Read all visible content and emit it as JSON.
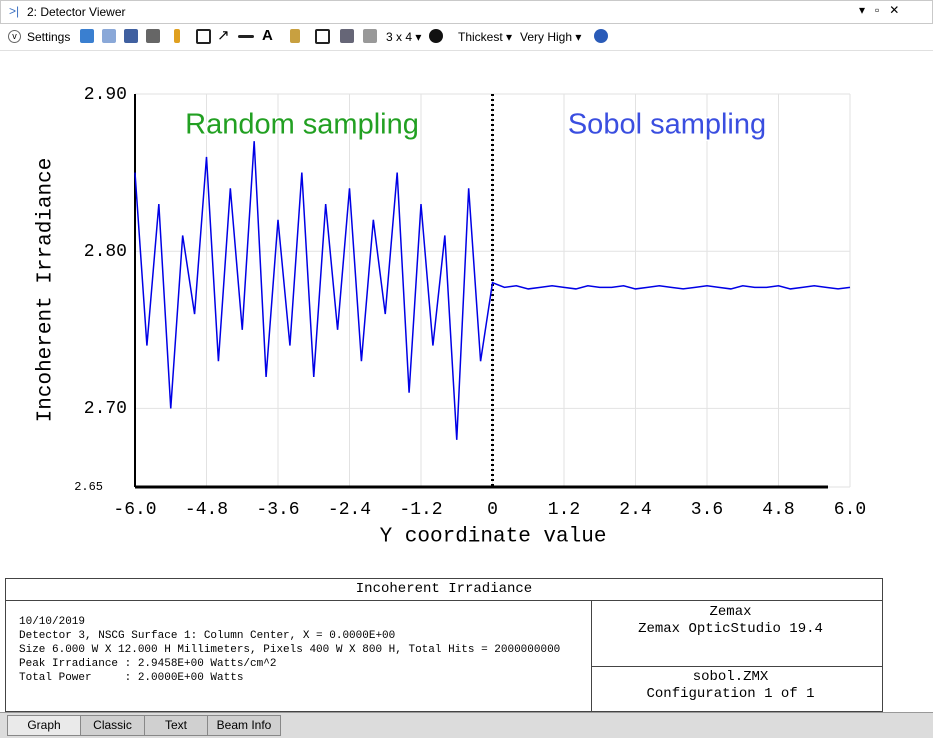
{
  "window": {
    "title": "2: Detector Viewer"
  },
  "toolbar": {
    "settings": "Settings",
    "layout": "3 x 4",
    "line_thickness": "Thickest",
    "resolution": "Very High"
  },
  "chart_data": {
    "type": "line",
    "ylabel": "Incoherent Irradiance",
    "xlabel": "Y coordinate value",
    "annotations": [
      {
        "text": "Random sampling",
        "color": "#22a022"
      },
      {
        "text": "Sobol sampling",
        "color": "#3a4ee0"
      }
    ],
    "x": [
      -6,
      -5.8,
      -5.6,
      -5.4,
      -5.2,
      -5,
      -4.8,
      -4.6,
      -4.4,
      -4.2,
      -4,
      -3.8,
      -3.6,
      -3.4,
      -3.2,
      -3,
      -2.8,
      -2.6,
      -2.4,
      -2.2,
      -2,
      -1.8,
      -1.6,
      -1.4,
      -1.2,
      -1,
      -0.8,
      -0.6,
      -0.4,
      -0.2,
      0,
      0.2,
      0.4,
      0.6,
      0.8,
      1,
      1.2,
      1.4,
      1.6,
      1.8,
      2,
      2.2,
      2.4,
      2.6,
      2.8,
      3,
      3.2,
      3.4,
      3.6,
      3.8,
      4,
      4.2,
      4.4,
      4.6,
      4.8,
      5,
      5.2,
      5.4,
      5.6,
      5.8,
      6
    ],
    "series": [
      {
        "name": "Incoherent Irradiance",
        "color": "#0000e6",
        "values": [
          2.85,
          2.74,
          2.83,
          2.7,
          2.81,
          2.76,
          2.86,
          2.73,
          2.84,
          2.75,
          2.87,
          2.72,
          2.82,
          2.74,
          2.85,
          2.72,
          2.83,
          2.75,
          2.84,
          2.73,
          2.82,
          2.76,
          2.85,
          2.71,
          2.83,
          2.74,
          2.81,
          2.68,
          2.84,
          2.73,
          2.78,
          2.777,
          2.778,
          2.776,
          2.777,
          2.778,
          2.777,
          2.776,
          2.778,
          2.777,
          2.777,
          2.778,
          2.776,
          2.777,
          2.778,
          2.777,
          2.776,
          2.777,
          2.778,
          2.777,
          2.776,
          2.778,
          2.777,
          2.777,
          2.778,
          2.776,
          2.777,
          2.778,
          2.777,
          2.776,
          2.777
        ]
      }
    ],
    "xlim": [
      -6,
      6
    ],
    "xticks": [
      {
        "value": -6,
        "label": "-6.0"
      },
      -4.8,
      -3.6,
      -2.4,
      -1.2,
      0,
      1.2,
      2.4,
      3.6,
      4.8,
      {
        "value": 6,
        "label": "6.0"
      }
    ],
    "ylim": [
      2.65,
      2.9
    ],
    "yticks": [
      {
        "value": 2.65,
        "label": "2.65"
      },
      {
        "value": 2.7,
        "label": "2.70"
      },
      {
        "value": 2.8,
        "label": "2.80"
      },
      {
        "value": 2.9,
        "label": "2.90"
      }
    ],
    "grid": true
  },
  "info": {
    "title": "Incoherent Irradiance",
    "lines": [
      "10/10/2019",
      "Detector 3, NSCG Surface 1: Column Center, X = 0.0000E+00",
      "Size 6.000 W X 12.000 H Millimeters, Pixels 400 W X 800 H, Total Hits = 2000000000",
      "Peak Irradiance : 2.9458E+00 Watts/cm^2",
      "Total Power     : 2.0000E+00 Watts"
    ],
    "company": "Zemax",
    "product": "Zemax OpticStudio 19.4",
    "file": "sobol.ZMX",
    "config": "Configuration 1 of 1"
  },
  "tabs": [
    "Graph",
    "Classic",
    "Text",
    "Beam Info"
  ]
}
